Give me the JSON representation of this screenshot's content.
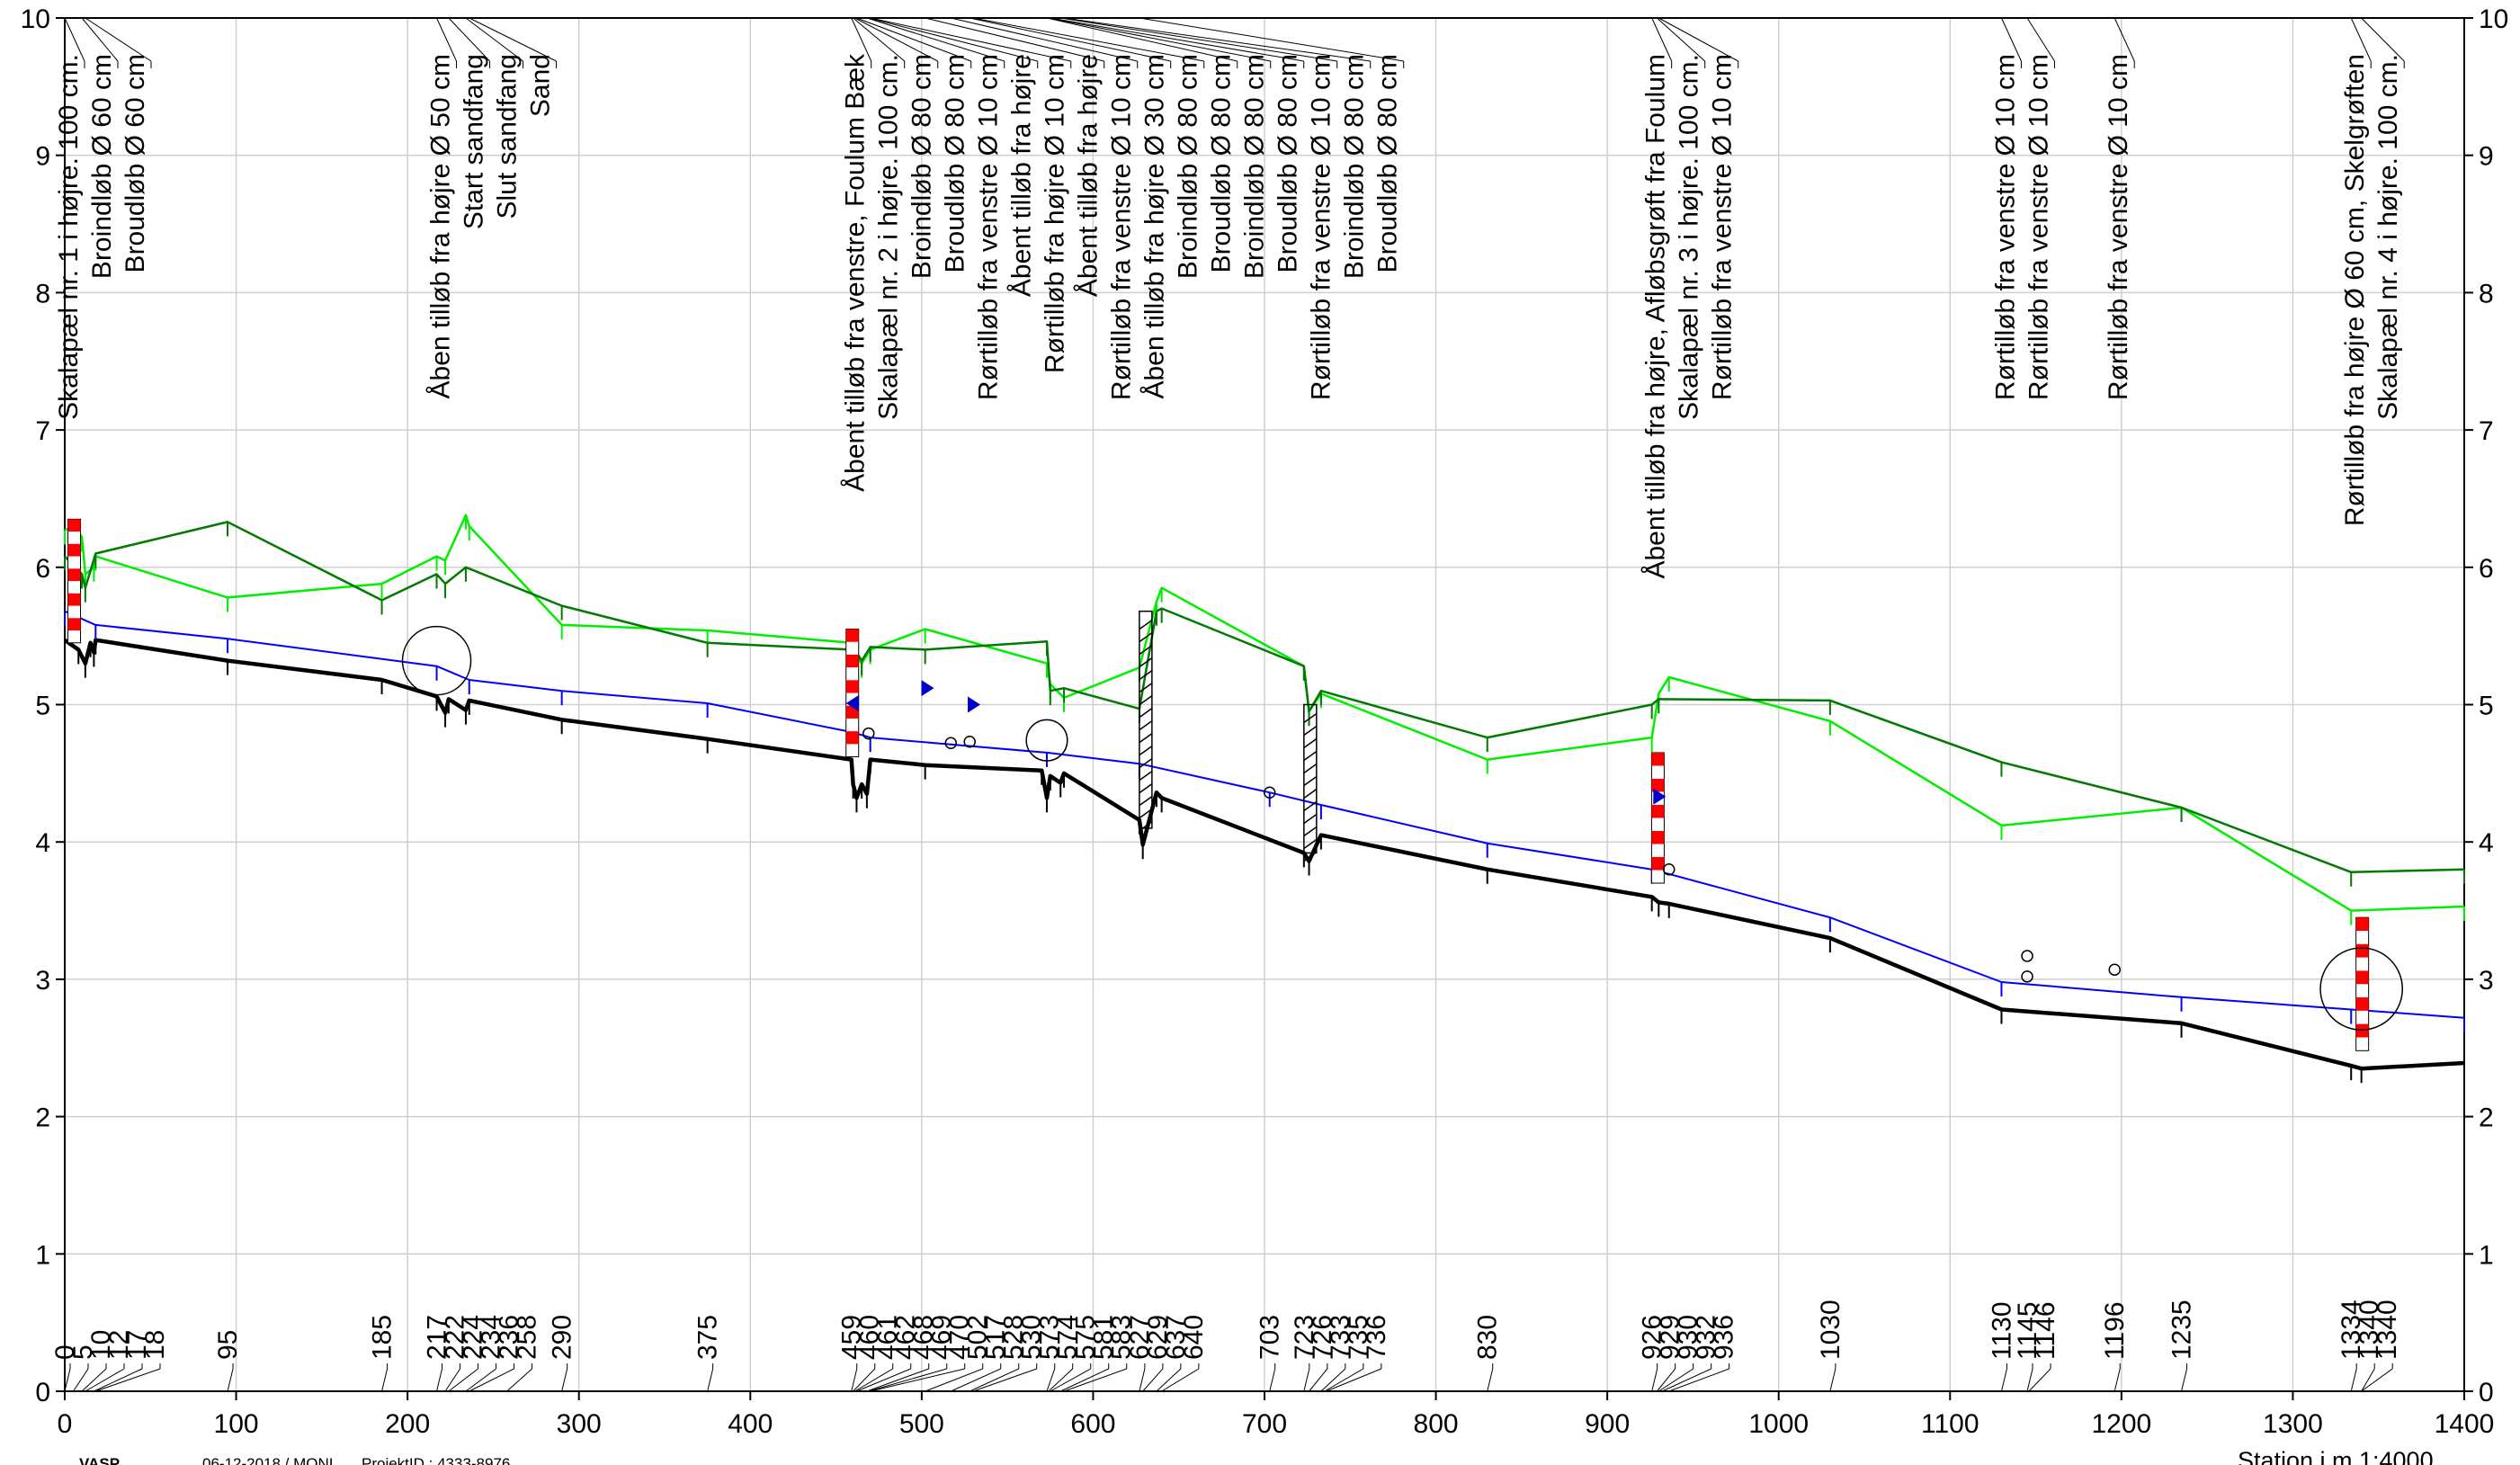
{
  "chart_data": {
    "type": "line",
    "title": "",
    "xlabel": "Station i m",
    "scale_label": "1:4000",
    "ylabel": "",
    "xlim": [
      0,
      1400
    ],
    "ylim": [
      0,
      10
    ],
    "x_ticks": [
      0,
      100,
      200,
      300,
      400,
      500,
      600,
      700,
      800,
      900,
      1000,
      1100,
      1200,
      1300,
      1400
    ],
    "y_ticks": [
      0,
      1,
      2,
      3,
      4,
      5,
      6,
      7,
      8,
      9,
      10
    ],
    "grid": true,
    "footer": {
      "program": "VASP",
      "date_user": "06-12-2018 / MONI",
      "project": "ProjektID : 4333-8976"
    },
    "series": [
      {
        "color": "#000000",
        "points": [
          [
            0,
            5.47
          ],
          [
            8,
            5.4
          ],
          [
            12,
            5.3
          ],
          [
            15,
            5.45
          ],
          [
            17,
            5.38
          ],
          [
            18,
            5.47
          ],
          [
            95,
            5.32
          ],
          [
            185,
            5.18
          ],
          [
            217,
            5.06
          ],
          [
            222,
            4.94
          ],
          [
            224,
            5.04
          ],
          [
            234,
            4.96
          ],
          [
            236,
            5.03
          ],
          [
            290,
            4.89
          ],
          [
            375,
            4.75
          ],
          [
            459,
            4.6
          ],
          [
            460,
            4.42
          ],
          [
            462,
            4.32
          ],
          [
            465,
            4.42
          ],
          [
            468,
            4.35
          ],
          [
            470,
            4.6
          ],
          [
            502,
            4.56
          ],
          [
            570,
            4.52
          ],
          [
            573,
            4.32
          ],
          [
            575,
            4.48
          ],
          [
            581,
            4.43
          ],
          [
            583,
            4.5
          ],
          [
            627,
            4.16
          ],
          [
            629,
            3.98
          ],
          [
            637,
            4.36
          ],
          [
            640,
            4.32
          ],
          [
            723,
            3.92
          ],
          [
            726,
            3.86
          ],
          [
            733,
            4.05
          ],
          [
            830,
            3.8
          ],
          [
            926,
            3.6
          ],
          [
            930,
            3.56
          ],
          [
            936,
            3.55
          ],
          [
            1030,
            3.3
          ],
          [
            1130,
            2.78
          ],
          [
            1235,
            2.68
          ],
          [
            1334,
            2.37
          ],
          [
            1340,
            2.35
          ],
          [
            1400,
            2.39
          ]
        ]
      },
      {
        "color": "#0000ff",
        "points": [
          [
            0,
            5.68
          ],
          [
            18,
            5.58
          ],
          [
            95,
            5.48
          ],
          [
            217,
            5.28
          ],
          [
            236,
            5.18
          ],
          [
            290,
            5.1
          ],
          [
            375,
            5.01
          ],
          [
            459,
            4.8
          ],
          [
            470,
            4.76
          ],
          [
            573,
            4.65
          ],
          [
            627,
            4.57
          ],
          [
            703,
            4.36
          ],
          [
            733,
            4.27
          ],
          [
            830,
            3.99
          ],
          [
            926,
            3.8
          ],
          [
            1030,
            3.45
          ],
          [
            1130,
            2.98
          ],
          [
            1235,
            2.87
          ],
          [
            1334,
            2.78
          ],
          [
            1400,
            2.72
          ]
        ]
      },
      {
        "color": "#00ee00",
        "points": [
          [
            0,
            6.27
          ],
          [
            5,
            6.3
          ],
          [
            10,
            6.22
          ],
          [
            12,
            5.95
          ],
          [
            17,
            6.0
          ],
          [
            18,
            6.08
          ],
          [
            95,
            5.78
          ],
          [
            185,
            5.88
          ],
          [
            217,
            6.08
          ],
          [
            222,
            6.05
          ],
          [
            234,
            6.38
          ],
          [
            236,
            6.3
          ],
          [
            290,
            5.58
          ],
          [
            375,
            5.54
          ],
          [
            459,
            5.45
          ],
          [
            460,
            5.42
          ],
          [
            462,
            5.35
          ],
          [
            465,
            5.3
          ],
          [
            470,
            5.4
          ],
          [
            502,
            5.55
          ],
          [
            573,
            5.3
          ],
          [
            575,
            5.15
          ],
          [
            583,
            5.05
          ],
          [
            627,
            5.27
          ],
          [
            637,
            5.75
          ],
          [
            640,
            5.85
          ],
          [
            723,
            5.28
          ],
          [
            726,
            4.95
          ],
          [
            733,
            5.08
          ],
          [
            830,
            4.6
          ],
          [
            926,
            4.76
          ],
          [
            930,
            5.08
          ],
          [
            936,
            5.2
          ],
          [
            1030,
            4.88
          ],
          [
            1130,
            4.12
          ],
          [
            1235,
            4.25
          ],
          [
            1334,
            3.5
          ],
          [
            1400,
            3.53
          ]
        ]
      },
      {
        "color": "#007a00",
        "points": [
          [
            0,
            6.08
          ],
          [
            10,
            5.95
          ],
          [
            12,
            5.85
          ],
          [
            18,
            6.1
          ],
          [
            95,
            6.33
          ],
          [
            185,
            5.76
          ],
          [
            217,
            5.95
          ],
          [
            222,
            5.88
          ],
          [
            234,
            6.0
          ],
          [
            290,
            5.72
          ],
          [
            375,
            5.45
          ],
          [
            459,
            5.4
          ],
          [
            462,
            5.38
          ],
          [
            465,
            5.32
          ],
          [
            470,
            5.42
          ],
          [
            502,
            5.4
          ],
          [
            573,
            5.46
          ],
          [
            575,
            5.1
          ],
          [
            583,
            5.12
          ],
          [
            627,
            4.97
          ],
          [
            637,
            5.68
          ],
          [
            640,
            5.7
          ],
          [
            723,
            5.28
          ],
          [
            726,
            4.95
          ],
          [
            733,
            5.1
          ],
          [
            830,
            4.76
          ],
          [
            926,
            5.0
          ],
          [
            930,
            5.04
          ],
          [
            1030,
            5.03
          ],
          [
            1130,
            4.58
          ],
          [
            1235,
            4.25
          ],
          [
            1334,
            3.78
          ],
          [
            1400,
            3.8
          ]
        ]
      }
    ],
    "station_labels": [
      {
        "x": 0,
        "text": "0"
      },
      {
        "x": 5,
        "text": "5"
      },
      {
        "x": 10,
        "text": "10"
      },
      {
        "x": 12,
        "text": "12"
      },
      {
        "x": 17,
        "text": "17"
      },
      {
        "x": 18,
        "text": "18"
      },
      {
        "x": 95,
        "text": "95"
      },
      {
        "x": 185,
        "text": "185"
      },
      {
        "x": 217,
        "text": "217"
      },
      {
        "x": 222,
        "text": "222"
      },
      {
        "x": 224,
        "text": "224"
      },
      {
        "x": 234,
        "text": "234"
      },
      {
        "x": 236,
        "text": "236"
      },
      {
        "x": 258,
        "text": "258"
      },
      {
        "x": 290,
        "text": "290"
      },
      {
        "x": 375,
        "text": "375"
      },
      {
        "x": 459,
        "text": "459"
      },
      {
        "x": 460,
        "text": "460"
      },
      {
        "x": 461,
        "text": "461"
      },
      {
        "x": 462,
        "text": "462"
      },
      {
        "x": 468,
        "text": "468"
      },
      {
        "x": 469,
        "text": "469"
      },
      {
        "x": 470,
        "text": "470"
      },
      {
        "x": 502,
        "text": "502"
      },
      {
        "x": 517,
        "text": "517"
      },
      {
        "x": 528,
        "text": "528"
      },
      {
        "x": 530,
        "text": "530"
      },
      {
        "x": 573,
        "text": "573"
      },
      {
        "x": 574,
        "text": "574"
      },
      {
        "x": 575,
        "text": "575"
      },
      {
        "x": 581,
        "text": "581"
      },
      {
        "x": 583,
        "text": "583"
      },
      {
        "x": 627,
        "text": "627"
      },
      {
        "x": 629,
        "text": "629"
      },
      {
        "x": 637,
        "text": "637"
      },
      {
        "x": 640,
        "text": "640"
      },
      {
        "x": 703,
        "text": "703"
      },
      {
        "x": 723,
        "text": "723"
      },
      {
        "x": 726,
        "text": "726"
      },
      {
        "x": 733,
        "text": "733"
      },
      {
        "x": 735,
        "text": "735"
      },
      {
        "x": 736,
        "text": "736"
      },
      {
        "x": 830,
        "text": "830"
      },
      {
        "x": 926,
        "text": "926"
      },
      {
        "x": 929,
        "text": "929"
      },
      {
        "x": 930,
        "text": "930"
      },
      {
        "x": 932,
        "text": "932"
      },
      {
        "x": 936,
        "text": "936"
      },
      {
        "x": 1030,
        "text": "1030"
      },
      {
        "x": 1130,
        "text": "1130"
      },
      {
        "x": 1145,
        "text": "1145"
      },
      {
        "x": 1146,
        "text": "1146"
      },
      {
        "x": 1196,
        "text": "1196"
      },
      {
        "x": 1235,
        "text": "1235"
      },
      {
        "x": 1334,
        "text": "1334"
      },
      {
        "x": 1340,
        "text": "1340"
      },
      {
        "x": 1340,
        "text": "1340"
      }
    ],
    "annotations": [
      {
        "x": 0,
        "text": "Skalapæl nr. 1 i højre. 100 cm."
      },
      {
        "x": 10,
        "text": "Broindløb Ø 60 cm"
      },
      {
        "x": 12,
        "text": "Broudløb Ø 60 cm"
      },
      {
        "x": 217,
        "text": "Åben tilløb fra højre Ø 50 cm"
      },
      {
        "x": 224,
        "text": "Start sandfang"
      },
      {
        "x": 234,
        "text": "Slut sandfang"
      },
      {
        "x": 236,
        "text": "Sand"
      },
      {
        "x": 459,
        "text": "Åbent tilløb fra venstre, Foulum Bæk"
      },
      {
        "x": 460,
        "text": "Skalapæl nr. 2 i højre. 100 cm."
      },
      {
        "x": 461,
        "text": "Broindløb Ø 80 cm"
      },
      {
        "x": 462,
        "text": "Broudløb Ø 80 cm"
      },
      {
        "x": 468,
        "text": "Rørtilløb fra venstre Ø 10 cm"
      },
      {
        "x": 469,
        "text": "Åbent tilløb fra højre"
      },
      {
        "x": 470,
        "text": "Rørtilløb fra højre Ø 10 cm"
      },
      {
        "x": 502,
        "text": "Åbent tilløb fra højre"
      },
      {
        "x": 517,
        "text": "Rørtilløb fra venstre Ø 10 cm"
      },
      {
        "x": 528,
        "text": "Åben tilløb fra højre Ø 30 cm"
      },
      {
        "x": 530,
        "text": "Broindløb Ø 80 cm"
      },
      {
        "x": 573,
        "text": "Broudløb Ø 80 cm"
      },
      {
        "x": 574,
        "text": "Broindløb Ø 80 cm"
      },
      {
        "x": 575,
        "text": "Broudløb Ø 80 cm"
      },
      {
        "x": 581,
        "text": "Rørtilløb fra venstre Ø 10 cm"
      },
      {
        "x": 583,
        "text": "Broindløb Ø 80 cm"
      },
      {
        "x": 627,
        "text": "Broudløb Ø 80 cm"
      },
      {
        "x": 926,
        "text": "Åbent tilløb fra højre, Afløbsgrøft fra Foulum"
      },
      {
        "x": 929,
        "text": "Skalapæl nr. 3 i højre. 100 cm."
      },
      {
        "x": 930,
        "text": "Rørtilløb fra venstre Ø 10 cm"
      },
      {
        "x": 1130,
        "text": "Rørtilløb fra venstre Ø 10 cm"
      },
      {
        "x": 1145,
        "text": "Rørtilløb fra venstre Ø 10 cm"
      },
      {
        "x": 1196,
        "text": "Rørtilløb fra venstre Ø 10 cm"
      },
      {
        "x": 1334,
        "text": "Rørtilløb fra højre Ø 60 cm, Skelgrøften"
      },
      {
        "x": 1340,
        "text": "Skalapæl nr. 4 i højre. 100 cm."
      }
    ],
    "gauges": [
      {
        "x": 5,
        "y_top": 6.35,
        "y_bottom": 5.45
      },
      {
        "x": 459,
        "y_top": 5.55,
        "y_bottom": 4.62
      },
      {
        "x": 929,
        "y_top": 4.65,
        "y_bottom": 3.7
      },
      {
        "x": 1340,
        "y_top": 3.45,
        "y_bottom": 2.48
      }
    ],
    "markers": [
      {
        "kind": "triangle-left",
        "x": 459,
        "y": 5.01,
        "color": "#0000cc"
      },
      {
        "kind": "triangle-right",
        "x": 503,
        "y": 5.12,
        "color": "#0000cc"
      },
      {
        "kind": "triangle-right",
        "x": 530,
        "y": 5.0,
        "color": "#0000cc"
      },
      {
        "kind": "triangle-right",
        "x": 930,
        "y": 4.33,
        "color": "#0000cc"
      },
      {
        "kind": "circle",
        "x": 469,
        "y": 4.79,
        "r": 3
      },
      {
        "kind": "circle",
        "x": 517,
        "y": 4.72,
        "r": 3
      },
      {
        "kind": "circle",
        "x": 528,
        "y": 4.73,
        "r": 3
      },
      {
        "kind": "circle",
        "x": 703,
        "y": 4.36,
        "r": 3
      },
      {
        "kind": "circle",
        "x": 936,
        "y": 3.8,
        "r": 3
      },
      {
        "kind": "circle",
        "x": 1145,
        "y": 3.17,
        "r": 3
      },
      {
        "kind": "circle",
        "x": 1145,
        "y": 3.02,
        "r": 3
      },
      {
        "kind": "circle",
        "x": 1196,
        "y": 3.07,
        "r": 3
      },
      {
        "kind": "circle",
        "x": 217,
        "y": 5.32,
        "r": 20
      },
      {
        "kind": "circle",
        "x": 573,
        "y": 4.74,
        "r": 12
      },
      {
        "kind": "circle",
        "x": 1340,
        "y": 2.93,
        "r": 24
      }
    ],
    "hatches": [
      {
        "x": 627,
        "y_top": 5.68,
        "y_bottom": 4.1
      },
      {
        "x": 723,
        "y_top": 5.0,
        "y_bottom": 3.92
      }
    ]
  }
}
